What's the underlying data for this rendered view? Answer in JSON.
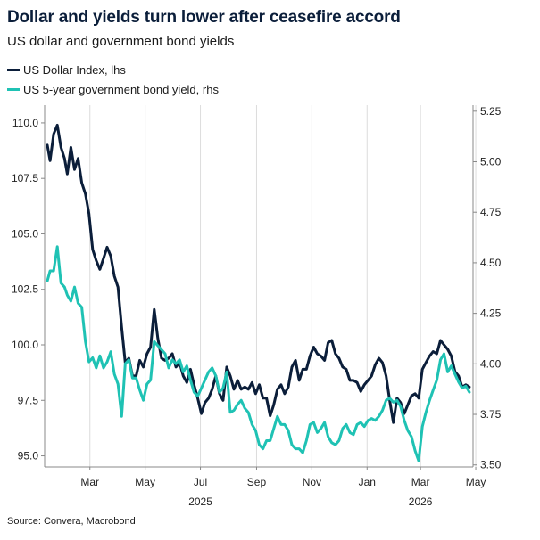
{
  "title": "Dollar and yields turn lower after ceasefire accord",
  "subtitle": "US dollar and government bond yields",
  "source": "Source: Convera, Macrobond",
  "chart_data": {
    "type": "line",
    "x_unit": "date",
    "left_axis": {
      "ylim": [
        94.5,
        110.8
      ],
      "ticks": [
        95.0,
        97.5,
        100.0,
        102.5,
        105.0,
        107.5,
        110.0
      ]
    },
    "right_axis": {
      "ylim": [
        3.49,
        5.28
      ],
      "ticks": [
        3.5,
        3.75,
        4.0,
        4.25,
        4.5,
        4.75,
        5.0,
        5.25
      ]
    },
    "x_ticks": [
      "Mar",
      "May",
      "Jul",
      "Sep",
      "Nov",
      "Jan",
      "Mar",
      "May"
    ],
    "x_tick_dates": [
      "2025-03-01",
      "2025-05-01",
      "2025-07-01",
      "2025-09-01",
      "2025-11-01",
      "2026-01-01",
      "2026-03-01",
      "2026-05-01"
    ],
    "year_labels": [
      {
        "label": "2025",
        "date": "2025-07-01"
      },
      {
        "label": "2026",
        "date": "2026-03-01"
      }
    ],
    "x_range": [
      "2025-01-10",
      "2026-04-28"
    ],
    "series": [
      {
        "name": "US Dollar Index, lhs",
        "axis": "left",
        "color": "#0b1e3a",
        "points": [
          [
            "2025-01-13",
            109.0
          ],
          [
            "2025-01-16",
            108.3
          ],
          [
            "2025-01-20",
            109.5
          ],
          [
            "2025-01-24",
            109.9
          ],
          [
            "2025-01-28",
            108.9
          ],
          [
            "2025-02-01",
            108.4
          ],
          [
            "2025-02-04",
            107.7
          ],
          [
            "2025-02-08",
            108.9
          ],
          [
            "2025-02-12",
            107.9
          ],
          [
            "2025-02-16",
            108.4
          ],
          [
            "2025-02-20",
            107.3
          ],
          [
            "2025-02-24",
            106.8
          ],
          [
            "2025-02-28",
            105.9
          ],
          [
            "2025-03-04",
            104.3
          ],
          [
            "2025-03-08",
            103.8
          ],
          [
            "2025-03-12",
            103.4
          ],
          [
            "2025-03-16",
            103.9
          ],
          [
            "2025-03-20",
            104.4
          ],
          [
            "2025-03-24",
            104.0
          ],
          [
            "2025-03-28",
            103.1
          ],
          [
            "2025-04-01",
            102.6
          ],
          [
            "2025-04-05",
            100.8
          ],
          [
            "2025-04-09",
            99.2
          ],
          [
            "2025-04-13",
            99.4
          ],
          [
            "2025-04-17",
            98.6
          ],
          [
            "2025-04-21",
            98.6
          ],
          [
            "2025-04-25",
            99.3
          ],
          [
            "2025-04-29",
            99.0
          ],
          [
            "2025-05-03",
            99.6
          ],
          [
            "2025-05-07",
            99.9
          ],
          [
            "2025-05-11",
            101.6
          ],
          [
            "2025-05-15",
            100.3
          ],
          [
            "2025-05-19",
            99.4
          ],
          [
            "2025-05-23",
            99.3
          ],
          [
            "2025-05-27",
            99.4
          ],
          [
            "2025-05-31",
            99.6
          ],
          [
            "2025-06-04",
            99.0
          ],
          [
            "2025-06-08",
            99.2
          ],
          [
            "2025-06-12",
            98.6
          ],
          [
            "2025-06-16",
            98.3
          ],
          [
            "2025-06-20",
            98.9
          ],
          [
            "2025-06-24",
            98.2
          ],
          [
            "2025-06-28",
            97.6
          ],
          [
            "2025-07-02",
            96.9
          ],
          [
            "2025-07-06",
            97.4
          ],
          [
            "2025-07-10",
            97.6
          ],
          [
            "2025-07-14",
            98.0
          ],
          [
            "2025-07-18",
            98.6
          ],
          [
            "2025-07-22",
            97.8
          ],
          [
            "2025-07-26",
            97.5
          ],
          [
            "2025-07-30",
            99.0
          ],
          [
            "2025-08-03",
            98.6
          ],
          [
            "2025-08-07",
            98.0
          ],
          [
            "2025-08-11",
            98.4
          ],
          [
            "2025-08-15",
            98.0
          ],
          [
            "2025-08-19",
            98.1
          ],
          [
            "2025-08-23",
            98.0
          ],
          [
            "2025-08-27",
            98.3
          ],
          [
            "2025-08-31",
            97.8
          ],
          [
            "2025-09-04",
            98.2
          ],
          [
            "2025-09-08",
            97.6
          ],
          [
            "2025-09-12",
            97.6
          ],
          [
            "2025-09-16",
            96.8
          ],
          [
            "2025-09-20",
            97.3
          ],
          [
            "2025-09-24",
            98.0
          ],
          [
            "2025-09-28",
            98.2
          ],
          [
            "2025-10-02",
            97.8
          ],
          [
            "2025-10-06",
            98.1
          ],
          [
            "2025-10-10",
            99.0
          ],
          [
            "2025-10-14",
            99.3
          ],
          [
            "2025-10-18",
            98.4
          ],
          [
            "2025-10-22",
            98.9
          ],
          [
            "2025-10-26",
            98.9
          ],
          [
            "2025-10-30",
            99.5
          ],
          [
            "2025-11-03",
            99.9
          ],
          [
            "2025-11-07",
            99.6
          ],
          [
            "2025-11-11",
            99.5
          ],
          [
            "2025-11-15",
            99.3
          ],
          [
            "2025-11-19",
            100.1
          ],
          [
            "2025-11-23",
            100.2
          ],
          [
            "2025-11-27",
            99.6
          ],
          [
            "2025-12-01",
            99.4
          ],
          [
            "2025-12-05",
            99.0
          ],
          [
            "2025-12-09",
            98.9
          ],
          [
            "2025-12-13",
            98.4
          ],
          [
            "2025-12-17",
            98.4
          ],
          [
            "2025-12-21",
            98.3
          ],
          [
            "2025-12-25",
            97.9
          ],
          [
            "2025-12-29",
            98.2
          ],
          [
            "2026-01-02",
            98.4
          ],
          [
            "2026-01-06",
            98.6
          ],
          [
            "2026-01-10",
            99.1
          ],
          [
            "2026-01-14",
            99.4
          ],
          [
            "2026-01-18",
            99.2
          ],
          [
            "2026-01-22",
            98.6
          ],
          [
            "2026-01-26",
            97.5
          ],
          [
            "2026-01-30",
            96.5
          ],
          [
            "2026-02-03",
            97.6
          ],
          [
            "2026-02-07",
            97.4
          ],
          [
            "2026-02-11",
            96.9
          ],
          [
            "2026-02-15",
            97.3
          ],
          [
            "2026-02-19",
            97.7
          ],
          [
            "2026-02-23",
            97.8
          ],
          [
            "2026-02-27",
            97.6
          ],
          [
            "2026-03-03",
            98.9
          ],
          [
            "2026-03-07",
            99.2
          ],
          [
            "2026-03-11",
            99.5
          ],
          [
            "2026-03-15",
            99.7
          ],
          [
            "2026-03-19",
            99.6
          ],
          [
            "2026-03-23",
            100.2
          ],
          [
            "2026-03-27",
            100.0
          ],
          [
            "2026-03-31",
            99.8
          ],
          [
            "2026-04-04",
            99.5
          ],
          [
            "2026-04-08",
            98.8
          ],
          [
            "2026-04-12",
            98.6
          ],
          [
            "2026-04-16",
            98.1
          ],
          [
            "2026-04-20",
            98.2
          ],
          [
            "2026-04-24",
            98.1
          ]
        ]
      },
      {
        "name": "US 5-year government bond yield, rhs",
        "axis": "right",
        "color": "#1fc2b4",
        "points": [
          [
            "2025-01-13",
            4.41
          ],
          [
            "2025-01-16",
            4.46
          ],
          [
            "2025-01-20",
            4.46
          ],
          [
            "2025-01-24",
            4.58
          ],
          [
            "2025-01-28",
            4.4
          ],
          [
            "2025-02-01",
            4.38
          ],
          [
            "2025-02-04",
            4.34
          ],
          [
            "2025-02-08",
            4.31
          ],
          [
            "2025-02-12",
            4.38
          ],
          [
            "2025-02-16",
            4.3
          ],
          [
            "2025-02-20",
            4.28
          ],
          [
            "2025-02-24",
            4.11
          ],
          [
            "2025-02-28",
            4.01
          ],
          [
            "2025-03-04",
            4.03
          ],
          [
            "2025-03-08",
            3.98
          ],
          [
            "2025-03-12",
            4.04
          ],
          [
            "2025-03-16",
            3.98
          ],
          [
            "2025-03-20",
            4.01
          ],
          [
            "2025-03-24",
            4.06
          ],
          [
            "2025-03-28",
            3.95
          ],
          [
            "2025-04-01",
            3.9
          ],
          [
            "2025-04-05",
            3.74
          ],
          [
            "2025-04-09",
            4.0
          ],
          [
            "2025-04-13",
            4.02
          ],
          [
            "2025-04-17",
            3.93
          ],
          [
            "2025-04-21",
            3.93
          ],
          [
            "2025-04-25",
            3.87
          ],
          [
            "2025-04-29",
            3.82
          ],
          [
            "2025-05-03",
            3.9
          ],
          [
            "2025-05-07",
            3.92
          ],
          [
            "2025-05-11",
            4.11
          ],
          [
            "2025-05-15",
            4.09
          ],
          [
            "2025-05-19",
            4.07
          ],
          [
            "2025-05-23",
            4.05
          ],
          [
            "2025-05-27",
            3.98
          ],
          [
            "2025-05-31",
            4.02
          ],
          [
            "2025-06-04",
            4.0
          ],
          [
            "2025-06-08",
            4.02
          ],
          [
            "2025-06-12",
            3.96
          ],
          [
            "2025-06-16",
            3.99
          ],
          [
            "2025-06-20",
            3.92
          ],
          [
            "2025-06-24",
            3.86
          ],
          [
            "2025-06-28",
            3.84
          ],
          [
            "2025-07-02",
            3.88
          ],
          [
            "2025-07-06",
            3.92
          ],
          [
            "2025-07-10",
            3.96
          ],
          [
            "2025-07-14",
            3.98
          ],
          [
            "2025-07-18",
            3.94
          ],
          [
            "2025-07-22",
            3.86
          ],
          [
            "2025-07-26",
            3.88
          ],
          [
            "2025-07-30",
            3.96
          ],
          [
            "2025-08-03",
            3.76
          ],
          [
            "2025-08-07",
            3.77
          ],
          [
            "2025-08-11",
            3.8
          ],
          [
            "2025-08-15",
            3.82
          ],
          [
            "2025-08-19",
            3.78
          ],
          [
            "2025-08-23",
            3.76
          ],
          [
            "2025-08-27",
            3.7
          ],
          [
            "2025-08-31",
            3.67
          ],
          [
            "2025-09-04",
            3.6
          ],
          [
            "2025-09-08",
            3.58
          ],
          [
            "2025-09-12",
            3.62
          ],
          [
            "2025-09-16",
            3.62
          ],
          [
            "2025-09-20",
            3.68
          ],
          [
            "2025-09-24",
            3.74
          ],
          [
            "2025-09-28",
            3.7
          ],
          [
            "2025-10-02",
            3.7
          ],
          [
            "2025-10-06",
            3.67
          ],
          [
            "2025-10-10",
            3.6
          ],
          [
            "2025-10-14",
            3.58
          ],
          [
            "2025-10-18",
            3.58
          ],
          [
            "2025-10-22",
            3.56
          ],
          [
            "2025-10-26",
            3.62
          ],
          [
            "2025-10-30",
            3.7
          ],
          [
            "2025-11-03",
            3.71
          ],
          [
            "2025-11-07",
            3.66
          ],
          [
            "2025-11-11",
            3.68
          ],
          [
            "2025-11-15",
            3.71
          ],
          [
            "2025-11-19",
            3.64
          ],
          [
            "2025-11-23",
            3.61
          ],
          [
            "2025-11-27",
            3.6
          ],
          [
            "2025-12-01",
            3.62
          ],
          [
            "2025-12-05",
            3.68
          ],
          [
            "2025-12-09",
            3.7
          ],
          [
            "2025-12-13",
            3.66
          ],
          [
            "2025-12-17",
            3.65
          ],
          [
            "2025-12-21",
            3.7
          ],
          [
            "2025-12-25",
            3.71
          ],
          [
            "2025-12-29",
            3.69
          ],
          [
            "2026-01-02",
            3.72
          ],
          [
            "2026-01-06",
            3.73
          ],
          [
            "2026-01-10",
            3.72
          ],
          [
            "2026-01-14",
            3.74
          ],
          [
            "2026-01-18",
            3.77
          ],
          [
            "2026-01-22",
            3.82
          ],
          [
            "2026-01-26",
            3.83
          ],
          [
            "2026-01-30",
            3.81
          ],
          [
            "2026-02-03",
            3.82
          ],
          [
            "2026-02-07",
            3.79
          ],
          [
            "2026-02-11",
            3.72
          ],
          [
            "2026-02-15",
            3.67
          ],
          [
            "2026-02-19",
            3.64
          ],
          [
            "2026-02-23",
            3.57
          ],
          [
            "2026-02-27",
            3.52
          ],
          [
            "2026-03-03",
            3.69
          ],
          [
            "2026-03-07",
            3.76
          ],
          [
            "2026-03-11",
            3.82
          ],
          [
            "2026-03-15",
            3.87
          ],
          [
            "2026-03-19",
            3.92
          ],
          [
            "2026-03-23",
            4.02
          ],
          [
            "2026-03-27",
            4.05
          ],
          [
            "2026-03-31",
            3.96
          ],
          [
            "2026-04-04",
            3.99
          ],
          [
            "2026-04-08",
            3.95
          ],
          [
            "2026-04-12",
            3.91
          ],
          [
            "2026-04-16",
            3.88
          ],
          [
            "2026-04-20",
            3.89
          ],
          [
            "2026-04-24",
            3.86
          ]
        ]
      }
    ]
  }
}
